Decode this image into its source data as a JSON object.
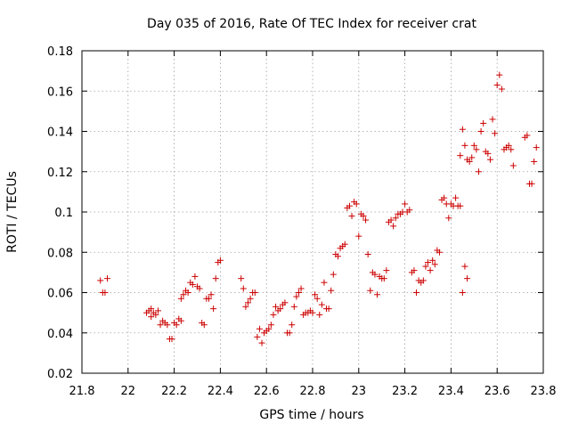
{
  "chart_data": {
    "type": "scatter",
    "title": "Day 035 of 2016, Rate Of TEC Index for receiver crat",
    "xlabel": "GPS time / hours",
    "ylabel": "ROTI / TECUs",
    "xlim": [
      21.8,
      23.8
    ],
    "ylim": [
      0.02,
      0.18
    ],
    "x_ticks": [
      21.8,
      22,
      22.2,
      22.4,
      22.6,
      22.8,
      23,
      23.2,
      23.4,
      23.6,
      23.8
    ],
    "x_tick_labels": [
      "21.8",
      "22",
      "22.2",
      "22.4",
      "22.6",
      "22.8",
      "23",
      "23.2",
      "23.4",
      "23.6",
      "23.8"
    ],
    "y_ticks": [
      0.02,
      0.04,
      0.06,
      0.08,
      0.1,
      0.12,
      0.14,
      0.16,
      0.18
    ],
    "y_tick_labels": [
      "0.02",
      "0.04",
      "0.06",
      "0.08",
      "0.1",
      "0.12",
      "0.14",
      "0.16",
      "0.18"
    ],
    "grid": true,
    "marker": "+",
    "marker_color": "#cc0000",
    "series": [
      {
        "points": [
          [
            21.88,
            0.066
          ],
          [
            21.89,
            0.06
          ],
          [
            21.9,
            0.06
          ],
          [
            21.91,
            0.067
          ],
          [
            22.08,
            0.05
          ],
          [
            22.09,
            0.051
          ],
          [
            22.1,
            0.048
          ],
          [
            22.1,
            0.052
          ],
          [
            22.11,
            0.05
          ],
          [
            22.12,
            0.049
          ],
          [
            22.13,
            0.051
          ],
          [
            22.14,
            0.044
          ],
          [
            22.15,
            0.046
          ],
          [
            22.16,
            0.045
          ],
          [
            22.17,
            0.044
          ],
          [
            22.18,
            0.037
          ],
          [
            22.19,
            0.037
          ],
          [
            22.2,
            0.045
          ],
          [
            22.21,
            0.044
          ],
          [
            22.22,
            0.047
          ],
          [
            22.23,
            0.046
          ],
          [
            22.23,
            0.057
          ],
          [
            22.24,
            0.059
          ],
          [
            22.25,
            0.061
          ],
          [
            22.26,
            0.06
          ],
          [
            22.27,
            0.065
          ],
          [
            22.28,
            0.064
          ],
          [
            22.29,
            0.068
          ],
          [
            22.3,
            0.063
          ],
          [
            22.31,
            0.062
          ],
          [
            22.32,
            0.045
          ],
          [
            22.33,
            0.044
          ],
          [
            22.34,
            0.057
          ],
          [
            22.35,
            0.057
          ],
          [
            22.36,
            0.059
          ],
          [
            22.37,
            0.052
          ],
          [
            22.38,
            0.067
          ],
          [
            22.39,
            0.075
          ],
          [
            22.4,
            0.076
          ],
          [
            22.49,
            0.067
          ],
          [
            22.5,
            0.062
          ],
          [
            22.51,
            0.053
          ],
          [
            22.52,
            0.055
          ],
          [
            22.53,
            0.057
          ],
          [
            22.54,
            0.06
          ],
          [
            22.55,
            0.06
          ],
          [
            22.56,
            0.038
          ],
          [
            22.57,
            0.042
          ],
          [
            22.58,
            0.035
          ],
          [
            22.59,
            0.04
          ],
          [
            22.6,
            0.041
          ],
          [
            22.61,
            0.042
          ],
          [
            22.62,
            0.044
          ],
          [
            22.63,
            0.049
          ],
          [
            22.64,
            0.053
          ],
          [
            22.65,
            0.051
          ],
          [
            22.66,
            0.052
          ],
          [
            22.67,
            0.054
          ],
          [
            22.68,
            0.055
          ],
          [
            22.69,
            0.04
          ],
          [
            22.7,
            0.04
          ],
          [
            22.71,
            0.044
          ],
          [
            22.72,
            0.053
          ],
          [
            22.73,
            0.058
          ],
          [
            22.74,
            0.06
          ],
          [
            22.75,
            0.062
          ],
          [
            22.76,
            0.049
          ],
          [
            22.77,
            0.05
          ],
          [
            22.78,
            0.05
          ],
          [
            22.79,
            0.051
          ],
          [
            22.8,
            0.05
          ],
          [
            22.81,
            0.059
          ],
          [
            22.82,
            0.057
          ],
          [
            22.83,
            0.049
          ],
          [
            22.84,
            0.054
          ],
          [
            22.85,
            0.065
          ],
          [
            22.86,
            0.052
          ],
          [
            22.87,
            0.052
          ],
          [
            22.88,
            0.061
          ],
          [
            22.89,
            0.069
          ],
          [
            22.9,
            0.079
          ],
          [
            22.91,
            0.078
          ],
          [
            22.92,
            0.082
          ],
          [
            22.93,
            0.083
          ],
          [
            22.94,
            0.084
          ],
          [
            22.95,
            0.102
          ],
          [
            22.96,
            0.103
          ],
          [
            22.97,
            0.098
          ],
          [
            22.98,
            0.105
          ],
          [
            22.99,
            0.104
          ],
          [
            23.0,
            0.088
          ],
          [
            23.01,
            0.099
          ],
          [
            23.02,
            0.098
          ],
          [
            23.03,
            0.096
          ],
          [
            23.04,
            0.079
          ],
          [
            23.05,
            0.061
          ],
          [
            23.06,
            0.07
          ],
          [
            23.07,
            0.069
          ],
          [
            23.08,
            0.059
          ],
          [
            23.09,
            0.068
          ],
          [
            23.1,
            0.067
          ],
          [
            23.11,
            0.067
          ],
          [
            23.12,
            0.071
          ],
          [
            23.13,
            0.095
          ],
          [
            23.14,
            0.096
          ],
          [
            23.15,
            0.093
          ],
          [
            23.16,
            0.097
          ],
          [
            23.17,
            0.099
          ],
          [
            23.18,
            0.099
          ],
          [
            23.19,
            0.1
          ],
          [
            23.2,
            0.104
          ],
          [
            23.21,
            0.1
          ],
          [
            23.22,
            0.101
          ],
          [
            23.23,
            0.07
          ],
          [
            23.24,
            0.071
          ],
          [
            23.25,
            0.06
          ],
          [
            23.26,
            0.066
          ],
          [
            23.27,
            0.065
          ],
          [
            23.28,
            0.066
          ],
          [
            23.29,
            0.073
          ],
          [
            23.3,
            0.075
          ],
          [
            23.31,
            0.071
          ],
          [
            23.32,
            0.076
          ],
          [
            23.33,
            0.074
          ],
          [
            23.34,
            0.081
          ],
          [
            23.35,
            0.08
          ],
          [
            23.36,
            0.106
          ],
          [
            23.37,
            0.107
          ],
          [
            23.38,
            0.104
          ],
          [
            23.39,
            0.097
          ],
          [
            23.4,
            0.104
          ],
          [
            23.41,
            0.103
          ],
          [
            23.42,
            0.107
          ],
          [
            23.43,
            0.103
          ],
          [
            23.44,
            0.103
          ],
          [
            23.45,
            0.06
          ],
          [
            23.46,
            0.073
          ],
          [
            23.47,
            0.067
          ],
          [
            23.44,
            0.128
          ],
          [
            23.45,
            0.141
          ],
          [
            23.46,
            0.133
          ],
          [
            23.47,
            0.126
          ],
          [
            23.48,
            0.125
          ],
          [
            23.49,
            0.127
          ],
          [
            23.5,
            0.133
          ],
          [
            23.51,
            0.131
          ],
          [
            23.52,
            0.12
          ],
          [
            23.53,
            0.14
          ],
          [
            23.54,
            0.144
          ],
          [
            23.55,
            0.13
          ],
          [
            23.56,
            0.129
          ],
          [
            23.57,
            0.126
          ],
          [
            23.58,
            0.146
          ],
          [
            23.59,
            0.139
          ],
          [
            23.6,
            0.163
          ],
          [
            23.61,
            0.168
          ],
          [
            23.62,
            0.161
          ],
          [
            23.63,
            0.131
          ],
          [
            23.64,
            0.132
          ],
          [
            23.65,
            0.133
          ],
          [
            23.66,
            0.131
          ],
          [
            23.67,
            0.123
          ],
          [
            23.72,
            0.137
          ],
          [
            23.73,
            0.138
          ],
          [
            23.74,
            0.114
          ],
          [
            23.75,
            0.114
          ],
          [
            23.76,
            0.125
          ],
          [
            23.77,
            0.132
          ]
        ]
      }
    ]
  }
}
